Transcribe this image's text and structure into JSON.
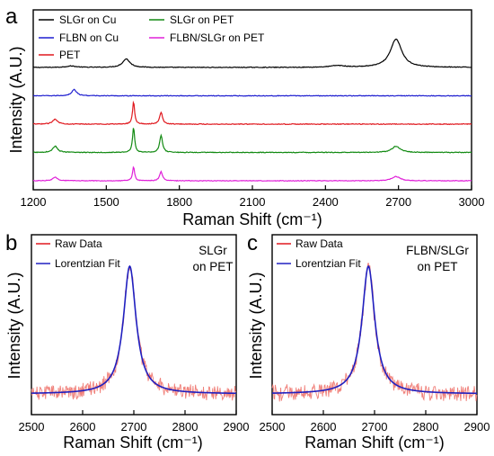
{
  "chart_data": [
    {
      "panel": "a",
      "type": "line",
      "title": "",
      "xlabel": "Raman Shift (cm⁻¹)",
      "ylabel": "Intensity (A.U.)",
      "xlim": [
        1200,
        3000
      ],
      "xticks": [
        1200,
        1500,
        1800,
        2100,
        2400,
        2700,
        3000
      ],
      "yticks_shown": false,
      "grid": false,
      "legend_placement": "top-left, two columns",
      "series": [
        {
          "name": "SLGr on Cu",
          "color": "#000000",
          "offset": 4.0,
          "noise": 0.012,
          "peaks": [
            {
              "center": 1355,
              "width": 25,
              "height": 0.05
            },
            {
              "center": 1582,
              "width": 18,
              "height": 0.3
            },
            {
              "center": 2450,
              "width": 35,
              "height": 0.06
            },
            {
              "center": 2690,
              "width": 28,
              "height": 1.0
            }
          ]
        },
        {
          "name": "FLBN on Cu",
          "color": "#1f1fd0",
          "offset": 3.0,
          "noise": 0.012,
          "peaks": [
            {
              "center": 1368,
              "width": 12,
              "height": 0.22
            }
          ]
        },
        {
          "name": "PET",
          "color": "#e0191f",
          "offset": 2.0,
          "noise": 0.013,
          "peaks": [
            {
              "center": 1290,
              "width": 12,
              "height": 0.18
            },
            {
              "center": 1612,
              "width": 5,
              "height": 0.8
            },
            {
              "center": 1725,
              "width": 7,
              "height": 0.42
            }
          ]
        },
        {
          "name": "SLGr on PET",
          "color": "#128a12",
          "offset": 1.0,
          "noise": 0.013,
          "peaks": [
            {
              "center": 1290,
              "width": 12,
              "height": 0.22
            },
            {
              "center": 1612,
              "width": 5,
              "height": 0.9
            },
            {
              "center": 1725,
              "width": 7,
              "height": 0.6
            },
            {
              "center": 2690,
              "width": 20,
              "height": 0.22
            }
          ]
        },
        {
          "name": "FLBN/SLGr on PET",
          "color": "#e020d8",
          "offset": 0.0,
          "noise": 0.011,
          "peaks": [
            {
              "center": 1290,
              "width": 12,
              "height": 0.12
            },
            {
              "center": 1612,
              "width": 5,
              "height": 0.5
            },
            {
              "center": 1725,
              "width": 7,
              "height": 0.32
            },
            {
              "center": 2690,
              "width": 20,
              "height": 0.15
            }
          ]
        }
      ]
    },
    {
      "panel": "b",
      "type": "line",
      "xlabel": "Raman Shift (cm⁻¹)",
      "ylabel": "Intensity (A.U.)",
      "xlim": [
        2500,
        2900
      ],
      "xticks": [
        2500,
        2600,
        2700,
        2800,
        2900
      ],
      "annotation": [
        "SLGr",
        "on PET"
      ],
      "legend_placement": "top-left",
      "series": [
        {
          "name": "Raw Data",
          "color": "#f0807a",
          "kind": "noisy",
          "center": 2692,
          "fwhm": 30,
          "height": 1.0,
          "noise": 0.07
        },
        {
          "name": "Lorentzian Fit",
          "color": "#2020c0",
          "kind": "lorentzian",
          "center": 2692,
          "fwhm": 30,
          "height": 1.0
        }
      ]
    },
    {
      "panel": "c",
      "type": "line",
      "xlabel": "Raman Shift (cm⁻¹)",
      "ylabel": "Intensity (A.U.)",
      "xlim": [
        2500,
        2900
      ],
      "xticks": [
        2500,
        2600,
        2700,
        2800,
        2900
      ],
      "annotation": [
        "FLBN/SLGr",
        "on PET"
      ],
      "legend_placement": "top-left",
      "series": [
        {
          "name": "Raw Data",
          "color": "#f0807a",
          "kind": "noisy",
          "center": 2688,
          "fwhm": 30,
          "height": 1.0,
          "noise": 0.07
        },
        {
          "name": "Lorentzian Fit",
          "color": "#2020c0",
          "kind": "lorentzian",
          "center": 2688,
          "fwhm": 30,
          "height": 1.0
        }
      ]
    }
  ]
}
